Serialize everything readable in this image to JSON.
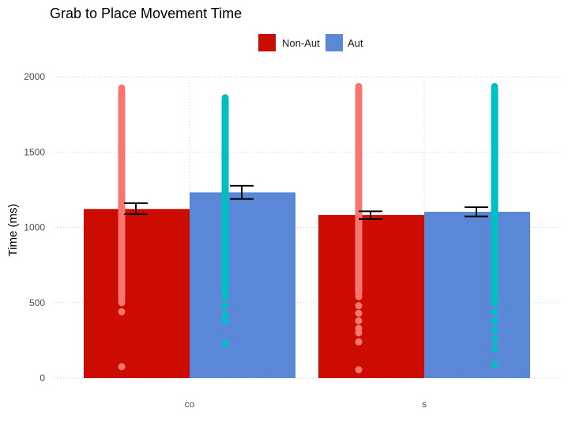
{
  "chart_data": {
    "type": "bar",
    "title": "Grab to Place Movement Time",
    "xlabel": "",
    "ylabel": "Time (ms)",
    "ylim": [
      0,
      2000
    ],
    "y_ticks": [
      0,
      500,
      1000,
      1500,
      2000
    ],
    "categories": [
      "co",
      "s"
    ],
    "grid": true,
    "legend_position": "top",
    "series": [
      {
        "name": "Non-Aut",
        "color": "#cc0c00",
        "point_color": "#f8766d",
        "values": [
          1122,
          1082
        ],
        "error": [
          [
            1087,
            1161
          ],
          [
            1055,
            1106
          ]
        ],
        "points": [
          [
            75,
            440,
            500,
            560,
            600,
            650,
            700,
            760,
            820,
            880,
            940,
            1000,
            1060,
            1120,
            1180,
            1240,
            1300,
            1360,
            1420,
            1480,
            1540,
            1600,
            1660,
            1720,
            1780,
            1840,
            1900,
            1925
          ],
          [
            55,
            240,
            300,
            330,
            380,
            430,
            480,
            540,
            600,
            660,
            720,
            780,
            840,
            900,
            960,
            1020,
            1080,
            1140,
            1200,
            1260,
            1320,
            1380,
            1440,
            1500,
            1560,
            1620,
            1680,
            1740,
            1800,
            1860,
            1920,
            1935
          ]
        ]
      },
      {
        "name": "Aut",
        "color": "#5b88d6",
        "point_color": "#00bfc4",
        "values": [
          1232,
          1103
        ],
        "error": [
          [
            1188,
            1276
          ],
          [
            1073,
            1134
          ]
        ],
        "points": [
          [
            230,
            380,
            420,
            480,
            540,
            600,
            660,
            720,
            780,
            840,
            900,
            960,
            1020,
            1080,
            1140,
            1200,
            1260,
            1320,
            1380,
            1440,
            1500,
            1560,
            1620,
            1680,
            1740,
            1800,
            1860
          ],
          [
            90,
            200,
            260,
            320,
            380,
            440,
            500,
            560,
            620,
            680,
            740,
            800,
            860,
            920,
            980,
            1040,
            1100,
            1160,
            1220,
            1280,
            1340,
            1400,
            1460,
            1520,
            1580,
            1640,
            1700,
            1760,
            1820,
            1880,
            1935
          ]
        ]
      }
    ]
  }
}
